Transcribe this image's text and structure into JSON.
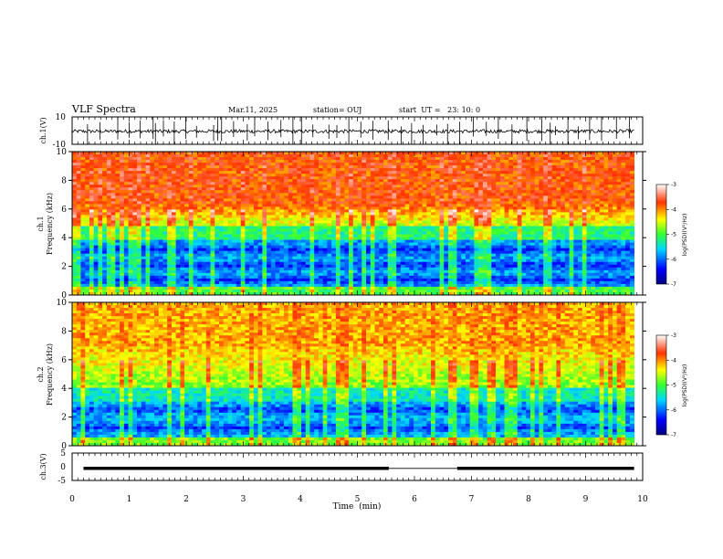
{
  "header": {
    "title": "VLF Spectra",
    "date": "Mar.11, 2025",
    "station": "station= OUJ",
    "start": "start  UT =   23: 10: 0"
  },
  "chart_data": [
    {
      "type": "line",
      "panel": "ch1_waveform",
      "ylabel": "ch.1(V)",
      "ylim": [
        -10,
        10
      ],
      "yticks": [
        "10",
        "-10"
      ],
      "xlim": [
        0,
        10
      ],
      "baseline": 0,
      "spikes": [
        0.27,
        0.49,
        0.8,
        1.0,
        1.19,
        1.42,
        1.46,
        1.6,
        1.79,
        1.99,
        2.18,
        2.48,
        2.55,
        2.62,
        2.83,
        3.07,
        3.2,
        3.43,
        3.66,
        3.87,
        4.02,
        4.22,
        4.5,
        4.64,
        4.85,
        5.06,
        5.27,
        5.54,
        5.77,
        5.95,
        6.15,
        6.39,
        6.58,
        6.79,
        7.03,
        7.26,
        7.47,
        7.71,
        7.97,
        8.23,
        8.38,
        8.47,
        8.69,
        8.87,
        9.07,
        9.28,
        9.54,
        9.77
      ]
    },
    {
      "type": "heatmap",
      "panel": "ch1_spectrogram",
      "ylabel": "ch.1 Frequency (kHz)",
      "ylim": [
        0,
        10
      ],
      "yticks": [
        "0",
        "2",
        "4",
        "6",
        "8",
        "10"
      ],
      "xlim": [
        0,
        9.85
      ],
      "colorbar": {
        "label": "log(PSD)(V²/Hz)",
        "range": [
          -7,
          -3
        ],
        "ticks": [
          "-3",
          "-4",
          "-5",
          "-6",
          "-7"
        ]
      }
    },
    {
      "type": "heatmap",
      "panel": "ch2_spectrogram",
      "ylabel": "ch.2 Frequency (kHz)",
      "ylim": [
        0,
        10
      ],
      "yticks": [
        "0",
        "2",
        "4",
        "6",
        "8",
        "10"
      ],
      "xlim": [
        0,
        9.85
      ],
      "colorbar": {
        "label": "log(PSD)(V²/Hz)",
        "range": [
          -7,
          -3
        ],
        "ticks": [
          "-3",
          "-4",
          "-5",
          "-6",
          "-7"
        ]
      }
    },
    {
      "type": "line",
      "panel": "ch3_level",
      "ylabel": "ch.3(V)",
      "ylim": [
        -5,
        5
      ],
      "yticks": [
        "5",
        "0",
        "-5"
      ],
      "xlabel": "Time  (min)",
      "xlim": [
        0,
        10
      ],
      "xticks": [
        "0",
        "1",
        "2",
        "3",
        "4",
        "5",
        "6",
        "7",
        "8",
        "9",
        "10"
      ],
      "segments": [
        [
          0.2,
          5.55,
          -0.6
        ],
        [
          6.75,
          9.85,
          -0.6
        ]
      ]
    }
  ]
}
